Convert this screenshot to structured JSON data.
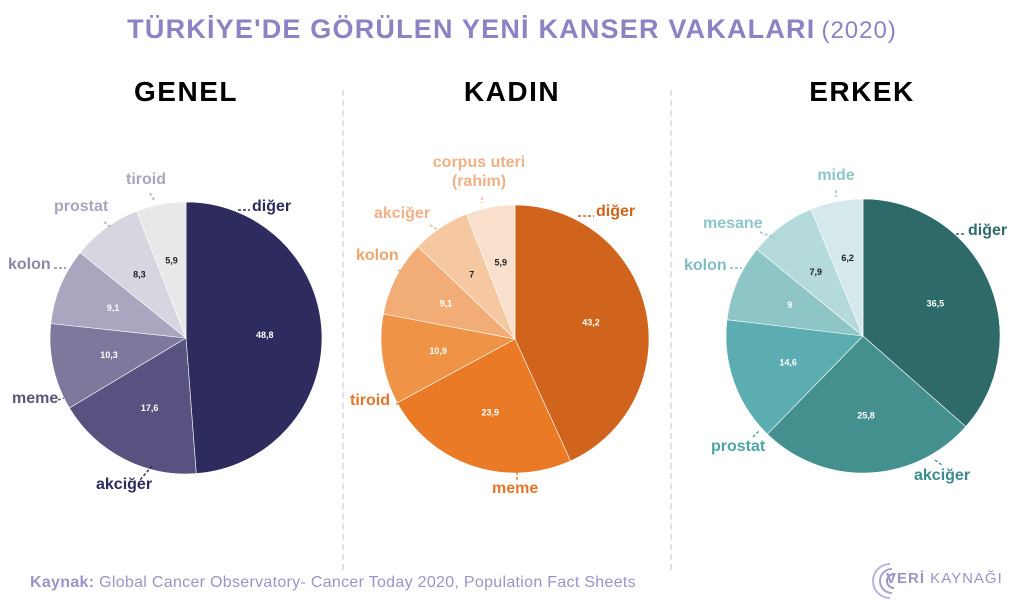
{
  "title": {
    "main": "TÜRKİYE'DE GÖRÜLEN YENİ KANSER VAKALARI",
    "year": "(2020)"
  },
  "colors": {
    "title": "#8b84c4",
    "source": "#9a95c8"
  },
  "source": {
    "label": "Kaynak:",
    "text": "Global Cancer Observatory- Cancer Today 2020, Population Fact Sheets"
  },
  "logo": {
    "bold": "VERİ",
    "rest": " KAYNAĞI"
  },
  "chart_data": [
    {
      "type": "pie",
      "title": "GENEL",
      "title_color": "#4a4675",
      "categories": [
        "diğer",
        "akciğer",
        "meme",
        "kolon",
        "prostat",
        "tiroid"
      ],
      "values": [
        48.8,
        17.6,
        10.3,
        9.1,
        8.3,
        5.9
      ],
      "value_labels": [
        "48,8",
        "17,6",
        "10,3",
        "9,1",
        "8,3",
        "5,9"
      ],
      "colors": [
        "#2e2b5f",
        "#57527f",
        "#7d799d",
        "#a9a6c0",
        "#d6d5e0",
        "#e8e8e8"
      ],
      "label_colors": [
        "#2e2b5f",
        "#2e2b5f",
        "#5a567e",
        "#8a87a8",
        "#a8a6bc",
        "#a8a6bc"
      ],
      "value_colors": [
        "#ffffff",
        "#ffffff",
        "#ffffff",
        "#ffffff",
        "#222222",
        "#222222"
      ]
    },
    {
      "type": "pie",
      "title": "KADIN",
      "title_color": "#ef8a4c",
      "categories": [
        "diğer",
        "meme",
        "tiroid",
        "kolon",
        "akciğer",
        "corpus uteri (rahim)"
      ],
      "values": [
        43.2,
        23.9,
        10.9,
        9.1,
        7,
        5.9
      ],
      "value_labels": [
        "43,2",
        "23,9",
        "10,9",
        "9,1",
        "7",
        "5,9"
      ],
      "colors": [
        "#d0641c",
        "#ea7a26",
        "#ef9447",
        "#f2ad76",
        "#f5c8a1",
        "#f9e0cc"
      ],
      "label_colors": [
        "#d0641c",
        "#e6752a",
        "#e6752a",
        "#eea56e",
        "#f0b185",
        "#f0b185"
      ],
      "value_colors": [
        "#ffffff",
        "#ffffff",
        "#ffffff",
        "#ffffff",
        "#222222",
        "#222222"
      ]
    },
    {
      "type": "pie",
      "title": "ERKEK",
      "title_color": "#3b8c8c",
      "categories": [
        "diğer",
        "akciğer",
        "prostat",
        "kolon",
        "mesane",
        "mide"
      ],
      "values": [
        36.5,
        25.8,
        14.6,
        9,
        7.9,
        6.2
      ],
      "value_labels": [
        "36,5",
        "25,8",
        "14,6",
        "9",
        "7,9",
        "6,2"
      ],
      "colors": [
        "#2f6a6a",
        "#43908f",
        "#5badb1",
        "#8ec6c8",
        "#b4dadb",
        "#d5e9ea"
      ],
      "label_colors": [
        "#2f6a6a",
        "#3b8c8c",
        "#4ea5a6",
        "#7fbdbf",
        "#8ec6c8",
        "#8ec6c8"
      ],
      "value_colors": [
        "#ffffff",
        "#ffffff",
        "#ffffff",
        "#ffffff",
        "#222222",
        "#222222"
      ]
    }
  ]
}
